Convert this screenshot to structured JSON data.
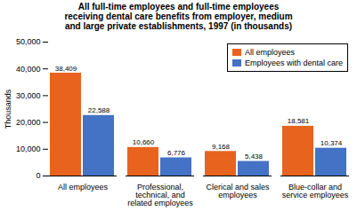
{
  "chart_data": {
    "type": "bar",
    "title": "All full-time employees and full-time employees\nreceiving dental care benefits from employer, medium\nand large private establishments, 1997 (in thousands)",
    "categories": [
      "All employees",
      "Professional,\ntechnical, and\nrelated employees",
      "Clerical and sales\nemployees",
      "Blue-collar and\nservice employees"
    ],
    "series": [
      {
        "name": "All employees",
        "color": "#E8641E",
        "values": [
          38409,
          10660,
          9168,
          18581
        ],
        "value_labels": [
          "38,409",
          "10,660",
          "9,168",
          "18,581"
        ]
      },
      {
        "name": "Employees with dental care",
        "color": "#4472C4",
        "values": [
          22588,
          6776,
          5438,
          10374
        ],
        "value_labels": [
          "22,588",
          "6,776",
          "5,438",
          "10,374"
        ]
      }
    ],
    "ylabel": "Thousands",
    "ylim": [
      0,
      50000
    ],
    "yticks": [
      0,
      {
        "value": 10000,
        "label": "10,000"
      },
      {
        "value": 20000,
        "label": "20,000"
      },
      {
        "value": 30000,
        "label": "30,000"
      },
      {
        "value": 40000,
        "label": "40,000"
      },
      {
        "value": 50000,
        "label": "50,000"
      }
    ],
    "legend": "upper right",
    "data_labels": true,
    "grid": false
  }
}
